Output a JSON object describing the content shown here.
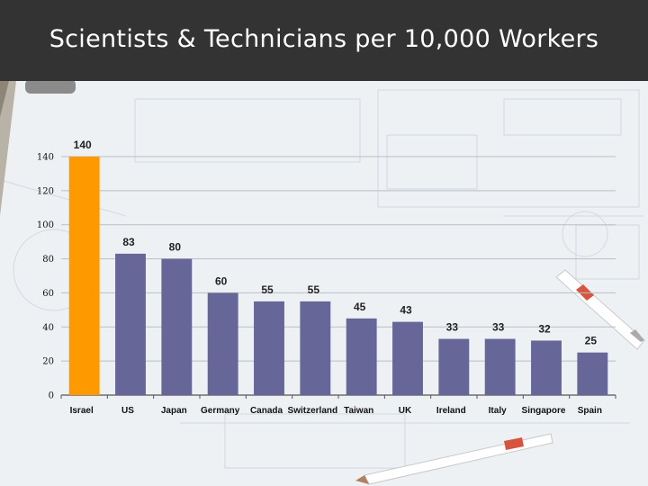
{
  "slide": {
    "title": "Scientists & Technicians per 10,000 Workers",
    "title_bar_color": "#333333",
    "background_color": "#eef1f4"
  },
  "chart_data": {
    "type": "bar",
    "title": "",
    "xlabel": "",
    "ylabel": "",
    "categories": [
      "Israel",
      "US",
      "Japan",
      "Germany",
      "Canada",
      "Switzerland",
      "Taiwan",
      "UK",
      "Ireland",
      "Italy",
      "Singapore",
      "Spain"
    ],
    "values": [
      140,
      83,
      80,
      60,
      55,
      55,
      45,
      43,
      33,
      33,
      32,
      25
    ],
    "data_labels": [
      "140",
      "83",
      "80",
      "60",
      "55",
      "55",
      "45",
      "43",
      "33",
      "33",
      "32",
      "25"
    ],
    "ylim": [
      0,
      140
    ],
    "yticks": [
      0,
      20,
      40,
      60,
      80,
      100,
      120,
      140
    ],
    "grid": true,
    "legend": "none",
    "colors": {
      "highlight": "#ff9900",
      "default": "#666699",
      "highlight_category": "Israel"
    }
  }
}
